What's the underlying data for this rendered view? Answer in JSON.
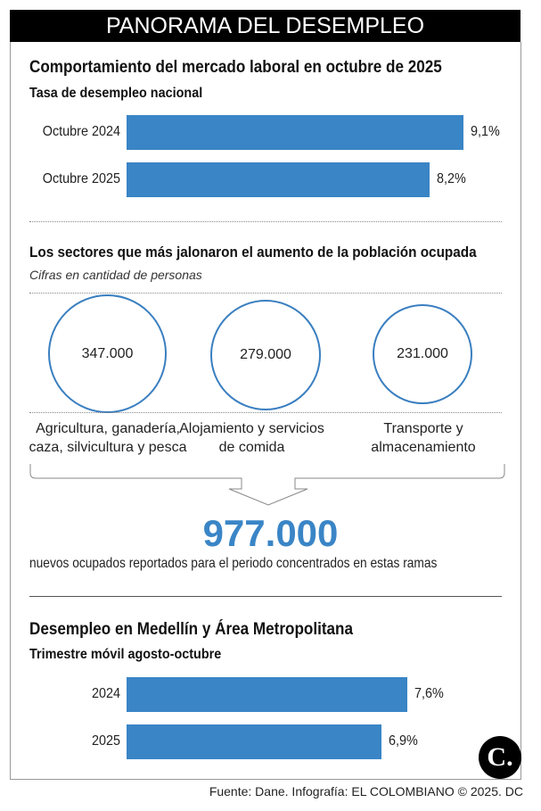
{
  "header": {
    "title": "PANORAMA DEL DESEMPLEO"
  },
  "section1": {
    "title": "Comportamiento del mercado laboral en octubre de 2025",
    "subtitle": "Tasa de desempleo nacional"
  },
  "section2": {
    "title": "Los sectores que más jalonaron el aumento de la población ocupada",
    "subtitle": "Cifras en cantidad de personas",
    "sectors": [
      {
        "value": "347.000",
        "label": "Agricultura, ganadería, caza, silvicultura y pesca"
      },
      {
        "value": "279.000",
        "label": "Alojamiento y servicios de comida"
      },
      {
        "value": "231.000",
        "label": "Transporte y almacenamiento"
      }
    ],
    "total": "977.000",
    "total_caption": "nuevos ocupados reportados para el periodo concentrados en estas ramas"
  },
  "section3": {
    "title": "Desempleo en Medellín y Área Metropolitana",
    "subtitle": "Trimestre móvil agosto-octubre"
  },
  "footer": {
    "source": "Fuente: Dane. Infografía: EL COLOMBIANO © 2025. DC",
    "logo": "C."
  },
  "chart_data": [
    {
      "type": "bar",
      "orientation": "horizontal",
      "title": "Tasa de desempleo nacional",
      "categories": [
        "Octubre 2024",
        "Octubre 2025"
      ],
      "values": [
        9.1,
        8.2
      ],
      "labels": [
        "9,1%",
        "8,2%"
      ],
      "color": "#3a85c6"
    },
    {
      "type": "bar",
      "orientation": "horizontal",
      "title": "Trimestre móvil agosto-octubre",
      "categories": [
        "2024",
        "2025"
      ],
      "values": [
        7.6,
        6.9
      ],
      "labels": [
        "7,6%",
        "6,9%"
      ],
      "color": "#3a85c6"
    }
  ]
}
